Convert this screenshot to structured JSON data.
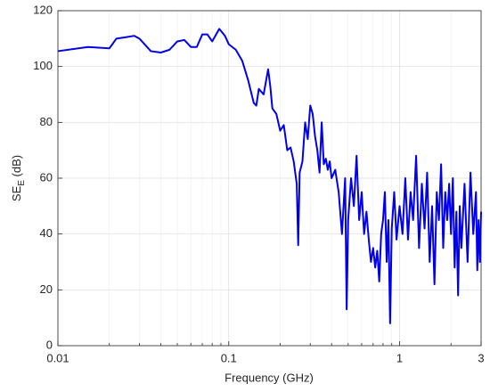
{
  "chart_data": {
    "type": "line",
    "xlabel": "Frequency (GHz)",
    "ylabel": "SE",
    "ylabel_subscript": "E",
    "ylabel_unit": "(dB)",
    "xscale": "log",
    "grid": true,
    "minor_grid": true,
    "xlim": [
      0.01,
      3
    ],
    "ylim": [
      0,
      120
    ],
    "xticks": [
      0.01,
      0.1,
      1,
      3
    ],
    "xminorticks": [
      0.02,
      0.03,
      0.04,
      0.05,
      0.06,
      0.07,
      0.08,
      0.09,
      0.2,
      0.3,
      0.4,
      0.5,
      0.6,
      0.7,
      0.8,
      0.9,
      2
    ],
    "yticks": [
      0,
      20,
      40,
      60,
      80,
      100,
      120
    ],
    "series": [
      {
        "color": "#0000ee",
        "x": [
          0.01,
          0.015,
          0.02,
          0.022,
          0.025,
          0.028,
          0.03,
          0.035,
          0.04,
          0.045,
          0.05,
          0.055,
          0.06,
          0.065,
          0.07,
          0.075,
          0.08,
          0.088,
          0.095,
          0.1,
          0.11,
          0.12,
          0.13,
          0.14,
          0.145,
          0.15,
          0.16,
          0.17,
          0.175,
          0.18,
          0.19,
          0.2,
          0.21,
          0.22,
          0.23,
          0.24,
          0.25,
          0.255,
          0.26,
          0.27,
          0.28,
          0.29,
          0.3,
          0.31,
          0.32,
          0.33,
          0.34,
          0.35,
          0.36,
          0.37,
          0.38,
          0.39,
          0.4,
          0.42,
          0.44,
          0.46,
          0.47,
          0.48,
          0.49,
          0.5,
          0.52,
          0.54,
          0.56,
          0.58,
          0.6,
          0.62,
          0.64,
          0.66,
          0.68,
          0.7,
          0.72,
          0.74,
          0.76,
          0.78,
          0.8,
          0.82,
          0.84,
          0.86,
          0.88,
          0.9,
          0.93,
          0.96,
          1.0,
          1.04,
          1.08,
          1.12,
          1.16,
          1.2,
          1.25,
          1.3,
          1.35,
          1.4,
          1.45,
          1.5,
          1.55,
          1.6,
          1.65,
          1.7,
          1.75,
          1.8,
          1.85,
          1.9,
          1.95,
          2.0,
          2.05,
          2.1,
          2.15,
          2.2,
          2.25,
          2.3,
          2.4,
          2.5,
          2.6,
          2.7,
          2.8,
          2.85,
          2.9,
          2.95,
          3.0
        ],
        "values": [
          105.5,
          107,
          106.5,
          110,
          110.5,
          111,
          110,
          105.5,
          105,
          106,
          109,
          109.5,
          107,
          107,
          111.5,
          111.5,
          109,
          113.5,
          111,
          108,
          106,
          102,
          95,
          87,
          86,
          92,
          90,
          99,
          93,
          85,
          83,
          77,
          79,
          70,
          71,
          66,
          58,
          36,
          62,
          66,
          80,
          74,
          86,
          83,
          75,
          70,
          62,
          80,
          65,
          67,
          63,
          66,
          60,
          63,
          55,
          40,
          50,
          60,
          13,
          45,
          60,
          50,
          68,
          45,
          55,
          40,
          48,
          38,
          30,
          35,
          28,
          34,
          23,
          40,
          45,
          55,
          30,
          45,
          8,
          42,
          55,
          38,
          50,
          40,
          60,
          38,
          55,
          45,
          68,
          35,
          58,
          42,
          62,
          30,
          50,
          22,
          55,
          45,
          65,
          35,
          55,
          45,
          58,
          40,
          60,
          28,
          48,
          18,
          50,
          35,
          58,
          30,
          62,
          40,
          55,
          27,
          45,
          30,
          48
        ]
      }
    ]
  }
}
